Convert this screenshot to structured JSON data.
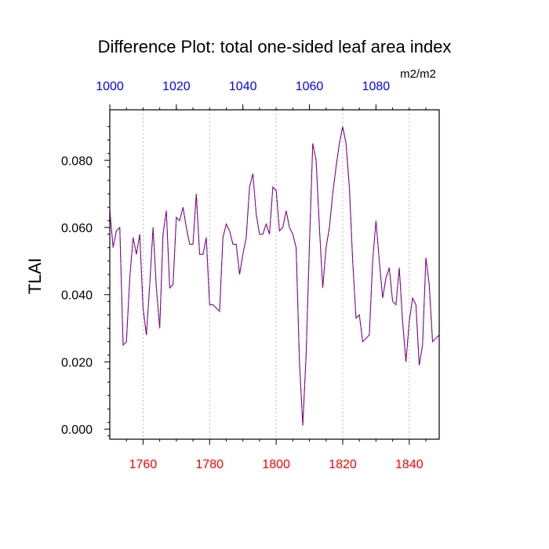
{
  "chart_data": {
    "type": "line",
    "title": "Difference Plot: total one-sided leaf area index",
    "ylabel": "TLAI",
    "units": "m2/m2",
    "xlim": [
      1750,
      1849
    ],
    "ylim": [
      -0.003,
      0.095
    ],
    "xticks_bottom": [
      1760,
      1780,
      1800,
      1820,
      1840
    ],
    "xticks_top": [
      1000,
      1020,
      1040,
      1060,
      1080
    ],
    "yticks": [
      0.0,
      0.02,
      0.04,
      0.06,
      0.08
    ],
    "ytick_labels": [
      "0.000",
      "0.020",
      "0.040",
      "0.060",
      "0.080"
    ],
    "grid": "vertical dotted at major x ticks",
    "colors": {
      "bottom_axis_labels": "#ff0000",
      "top_axis_labels": "#0000ff",
      "series_a": "#0000ff",
      "series_b": "#ff0000"
    },
    "series": [
      {
        "x": [
          1750,
          1751,
          1752,
          1753,
          1754,
          1755,
          1756,
          1757,
          1758,
          1759,
          1760,
          1761,
          1762,
          1763,
          1764,
          1765,
          1766,
          1767,
          1768,
          1769,
          1770,
          1771,
          1772,
          1773,
          1774,
          1775,
          1776,
          1777,
          1778,
          1779,
          1780,
          1781,
          1782,
          1783,
          1784,
          1785,
          1786,
          1787,
          1788,
          1789,
          1790,
          1791,
          1792,
          1793,
          1794,
          1795,
          1796,
          1797,
          1798,
          1799,
          1800,
          1801,
          1802,
          1803,
          1804,
          1805,
          1806,
          1807,
          1808,
          1809,
          1810,
          1811,
          1812,
          1813,
          1814,
          1815,
          1816,
          1817,
          1818,
          1819,
          1820,
          1821,
          1822,
          1823,
          1824,
          1825,
          1826,
          1827,
          1828,
          1829,
          1830,
          1831,
          1832,
          1833,
          1834,
          1835,
          1836,
          1837,
          1838,
          1839,
          1840,
          1841,
          1842,
          1843,
          1844,
          1845,
          1846,
          1847,
          1848,
          1849
        ],
        "y": [
          0.065,
          0.054,
          0.059,
          0.06,
          0.025,
          0.026,
          0.045,
          0.057,
          0.052,
          0.058,
          0.036,
          0.028,
          0.043,
          0.06,
          0.042,
          0.03,
          0.058,
          0.065,
          0.042,
          0.043,
          0.063,
          0.062,
          0.066,
          0.06,
          0.055,
          0.055,
          0.07,
          0.052,
          0.052,
          0.057,
          0.037,
          0.037,
          0.036,
          0.035,
          0.057,
          0.061,
          0.059,
          0.055,
          0.055,
          0.046,
          0.052,
          0.057,
          0.072,
          0.076,
          0.064,
          0.058,
          0.058,
          0.061,
          0.058,
          0.072,
          0.071,
          0.059,
          0.06,
          0.065,
          0.06,
          0.058,
          0.054,
          0.02,
          0.001,
          0.022,
          0.055,
          0.085,
          0.08,
          0.06,
          0.042,
          0.054,
          0.06,
          0.07,
          0.078,
          0.085,
          0.09,
          0.085,
          0.072,
          0.05,
          0.033,
          0.034,
          0.026,
          0.027,
          0.028,
          0.05,
          0.062,
          0.05,
          0.039,
          0.045,
          0.048,
          0.038,
          0.037,
          0.048,
          0.032,
          0.02,
          0.032,
          0.039,
          0.037,
          0.019,
          0.025,
          0.051,
          0.043,
          0.026,
          0.027,
          0.028
        ]
      }
    ]
  }
}
